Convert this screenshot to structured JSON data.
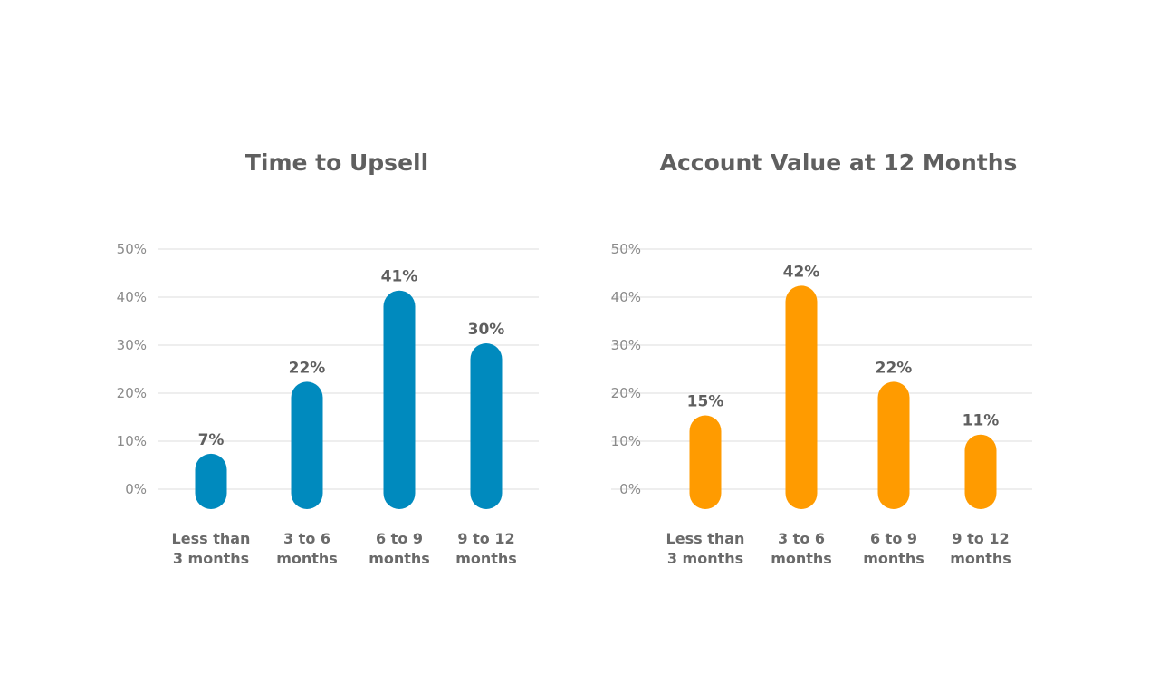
{
  "chart_data": [
    {
      "type": "bar",
      "title": "Time to Upsell",
      "categories": [
        [
          "Less than",
          "3 months"
        ],
        [
          "3 to 6",
          "months"
        ],
        [
          "6 to 9",
          "months"
        ],
        [
          "9 to 12",
          "months"
        ]
      ],
      "values": [
        7,
        22,
        41,
        30
      ],
      "data_labels": [
        "7%",
        "22%",
        "41%",
        "30%"
      ],
      "yticks": [
        "0%",
        "10%",
        "20%",
        "30%",
        "40%",
        "50%"
      ],
      "ylim": [
        0,
        50
      ],
      "grid": true,
      "color": "#008abe"
    },
    {
      "type": "bar",
      "title": "Account Value at 12 Months",
      "categories": [
        [
          "Less than",
          "3 months"
        ],
        [
          "3 to 6",
          "months"
        ],
        [
          "6 to 9",
          "months"
        ],
        [
          "9 to 12",
          "months"
        ]
      ],
      "values": [
        15,
        42,
        22,
        11
      ],
      "data_labels": [
        "15%",
        "42%",
        "22%",
        "11%"
      ],
      "yticks": [
        "0%",
        "10%",
        "20%",
        "30%",
        "40%",
        "50%"
      ],
      "ylim": [
        0,
        50
      ],
      "grid": true,
      "color": "#ff9b00"
    }
  ]
}
